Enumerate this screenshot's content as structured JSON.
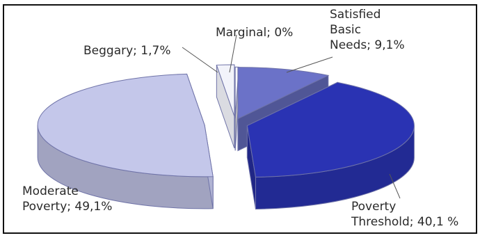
{
  "chart_data": {
    "type": "pie",
    "style": "3d-exploded",
    "slices": [
      {
        "name": "Satisfied Basic Needs",
        "value": 9.1,
        "color": "#6b72c8",
        "label_lines": [
          "Satisfied",
          "Basic",
          "Needs; 9,1%"
        ]
      },
      {
        "name": "Poverty Threshold",
        "value": 40.1,
        "color": "#2a33b3",
        "label_lines": [
          "Poverty",
          "Threshold; 40,1 %"
        ]
      },
      {
        "name": "Moderate Poverty",
        "value": 49.1,
        "color": "#c4c7ea",
        "label_lines": [
          "Moderate",
          "Poverty; 49,1%"
        ]
      },
      {
        "name": "Beggary",
        "value": 1.7,
        "color": "#f2f3fa",
        "label_lines": [
          "Beggary; 1,7%"
        ]
      },
      {
        "name": "Marginal",
        "value": 0,
        "color": "#ffffff",
        "label_lines": [
          "Marginal; 0%"
        ]
      }
    ]
  }
}
